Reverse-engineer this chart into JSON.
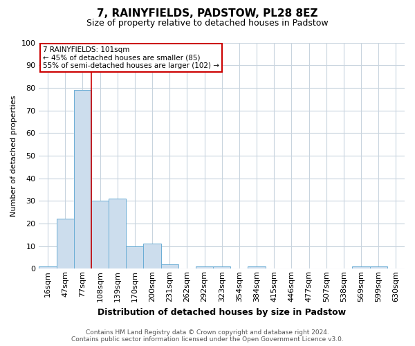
{
  "title": "7, RAINYFIELDS, PADSTOW, PL28 8EZ",
  "subtitle": "Size of property relative to detached houses in Padstow",
  "xlabel": "Distribution of detached houses by size in Padstow",
  "ylabel": "Number of detached properties",
  "bin_labels": [
    "16sqm",
    "47sqm",
    "77sqm",
    "108sqm",
    "139sqm",
    "170sqm",
    "200sqm",
    "231sqm",
    "262sqm",
    "292sqm",
    "323sqm",
    "354sqm",
    "384sqm",
    "415sqm",
    "446sqm",
    "477sqm",
    "507sqm",
    "538sqm",
    "569sqm",
    "599sqm",
    "630sqm"
  ],
  "bar_heights": [
    1,
    22,
    79,
    30,
    31,
    10,
    11,
    2,
    0,
    1,
    1,
    0,
    1,
    0,
    0,
    0,
    0,
    0,
    1,
    1,
    0
  ],
  "bar_color": "#ccdded",
  "bar_edge_color": "#6aadd5",
  "red_line_bin": 3,
  "ylim": [
    0,
    100
  ],
  "yticks": [
    0,
    10,
    20,
    30,
    40,
    50,
    60,
    70,
    80,
    90,
    100
  ],
  "annotation_lines": [
    "7 RAINYFIELDS: 101sqm",
    "← 45% of detached houses are smaller (85)",
    "55% of semi-detached houses are larger (102) →"
  ],
  "annotation_box_facecolor": "#ffffff",
  "annotation_box_edgecolor": "#cc0000",
  "footer_line1": "Contains HM Land Registry data © Crown copyright and database right 2024.",
  "footer_line2": "Contains public sector information licensed under the Open Government Licence v3.0.",
  "background_color": "#ffffff",
  "grid_color": "#c8d4de",
  "title_fontsize": 11,
  "subtitle_fontsize": 9,
  "xlabel_fontsize": 9,
  "ylabel_fontsize": 8,
  "tick_fontsize": 8,
  "annotation_fontsize": 7.5,
  "footer_fontsize": 6.5
}
